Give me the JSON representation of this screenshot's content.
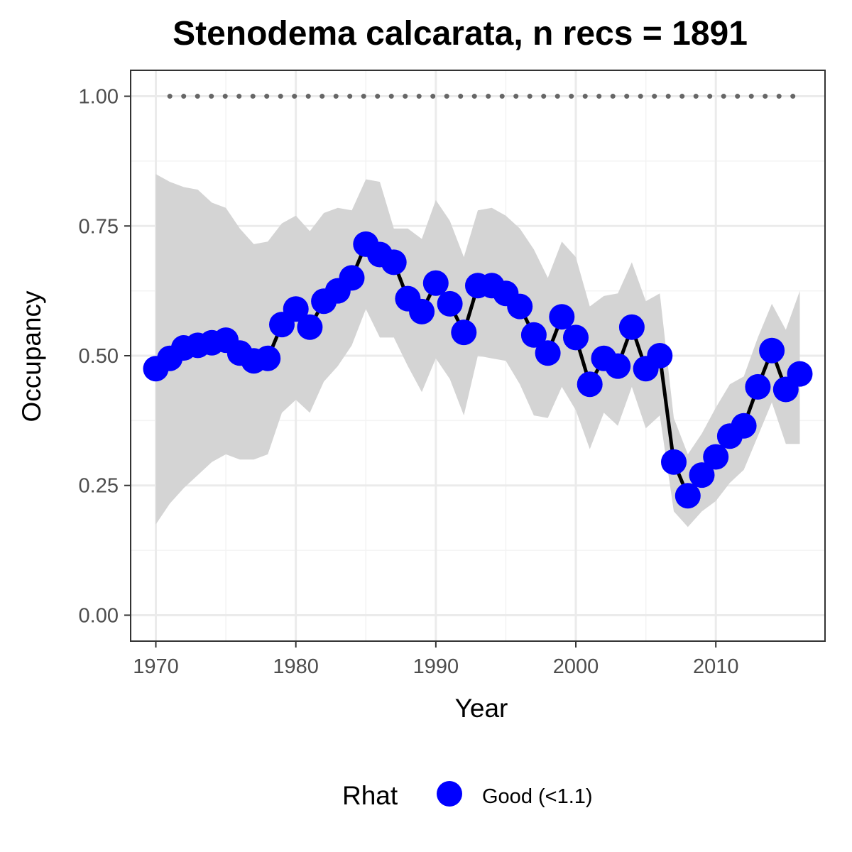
{
  "colors": {
    "point": "#0000ff",
    "line": "#000000",
    "ribbon": "#d4d4d4",
    "reference_dots": "#666666",
    "grid_major": "#ebebeb",
    "grid_minor": "#f3f3f3",
    "panel_border": "#333333"
  },
  "chart_data": {
    "type": "line",
    "title": "Stenodema calcarata, n recs = 1891",
    "xlabel": "Year",
    "ylabel": "Occupancy",
    "xlim": [
      1968.2,
      2017.8
    ],
    "ylim": [
      -0.05,
      1.05
    ],
    "x_ticks": [
      1970,
      1980,
      1990,
      2000,
      2010
    ],
    "x_tick_labels": [
      "1970",
      "1980",
      "1990",
      "2000",
      "2010"
    ],
    "y_ticks": [
      0,
      0.25,
      0.5,
      0.75,
      1.0
    ],
    "y_tick_labels": [
      "0.00",
      "0.25",
      "0.50",
      "0.75",
      "1.00"
    ],
    "grid": true,
    "legend": {
      "title": "Rhat",
      "position": "bottom",
      "entries": [
        "Good (<1.1)"
      ]
    },
    "x": [
      1970,
      1971,
      1972,
      1973,
      1974,
      1975,
      1976,
      1977,
      1978,
      1979,
      1980,
      1981,
      1982,
      1983,
      1984,
      1985,
      1986,
      1987,
      1988,
      1989,
      1990,
      1991,
      1992,
      1993,
      1994,
      1995,
      1996,
      1997,
      1998,
      1999,
      2000,
      2001,
      2002,
      2003,
      2004,
      2005,
      2006,
      2007,
      2008,
      2009,
      2010,
      2011,
      2012,
      2013,
      2014,
      2015,
      2016
    ],
    "series": [
      {
        "name": "Good (<1.1)",
        "values": [
          0.475,
          0.495,
          0.515,
          0.52,
          0.525,
          0.53,
          0.505,
          0.49,
          0.495,
          0.56,
          0.59,
          0.555,
          0.605,
          0.625,
          0.65,
          0.715,
          0.695,
          0.68,
          0.61,
          0.585,
          0.64,
          0.6,
          0.545,
          0.635,
          0.635,
          0.62,
          0.595,
          0.54,
          0.505,
          0.575,
          0.535,
          0.445,
          0.495,
          0.48,
          0.555,
          0.475,
          0.5,
          0.295,
          0.23,
          0.27,
          0.305,
          0.345,
          0.365,
          0.44,
          0.51,
          0.435,
          0.465
        ],
        "lower": [
          0.175,
          0.215,
          0.245,
          0.27,
          0.295,
          0.31,
          0.3,
          0.3,
          0.31,
          0.39,
          0.415,
          0.39,
          0.45,
          0.48,
          0.52,
          0.59,
          0.535,
          0.535,
          0.48,
          0.43,
          0.495,
          0.455,
          0.385,
          0.5,
          0.495,
          0.49,
          0.445,
          0.385,
          0.38,
          0.44,
          0.395,
          0.32,
          0.39,
          0.365,
          0.44,
          0.36,
          0.385,
          0.2,
          0.17,
          0.2,
          0.22,
          0.255,
          0.28,
          0.345,
          0.41,
          0.33,
          0.33
        ],
        "upper": [
          0.85,
          0.835,
          0.825,
          0.82,
          0.795,
          0.785,
          0.745,
          0.715,
          0.72,
          0.755,
          0.77,
          0.74,
          0.775,
          0.785,
          0.78,
          0.84,
          0.835,
          0.745,
          0.745,
          0.725,
          0.8,
          0.76,
          0.69,
          0.78,
          0.785,
          0.77,
          0.745,
          0.705,
          0.65,
          0.72,
          0.69,
          0.595,
          0.615,
          0.62,
          0.68,
          0.605,
          0.62,
          0.38,
          0.31,
          0.35,
          0.4,
          0.445,
          0.46,
          0.535,
          0.6,
          0.55,
          0.625
        ]
      }
    ],
    "reference_line": {
      "y": 1.0,
      "x_from": 1971,
      "x_to": 2016,
      "style": "dotted"
    }
  }
}
